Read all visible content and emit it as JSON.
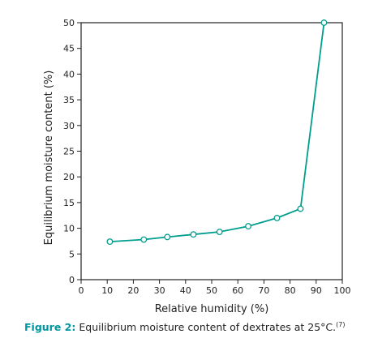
{
  "colors": {
    "series": "#009e8e",
    "axis": "#222222",
    "caption_label": "#0096a0"
  },
  "chart_data": {
    "type": "line",
    "title": "",
    "xlabel": "Relative humidity (%)",
    "ylabel": "Equilibrium moisture content (%)",
    "xlim": [
      0,
      100
    ],
    "ylim": [
      0,
      50
    ],
    "xticks": [
      0,
      10,
      20,
      30,
      40,
      50,
      60,
      70,
      80,
      90,
      100
    ],
    "yticks": [
      0,
      5,
      10,
      15,
      20,
      25,
      30,
      35,
      40,
      45,
      50
    ],
    "grid": false,
    "series": [
      {
        "x": [
          11,
          24,
          33,
          43,
          53,
          64,
          75,
          84,
          93
        ],
        "y": [
          7.4,
          7.8,
          8.3,
          8.8,
          9.3,
          10.4,
          12.0,
          13.8,
          50.0
        ],
        "marker": "open-circle"
      }
    ]
  },
  "caption": {
    "label": "Figure 2:",
    "text": "Equilibrium moisture content of dextrates at 25°C.",
    "ref": "(7)"
  }
}
